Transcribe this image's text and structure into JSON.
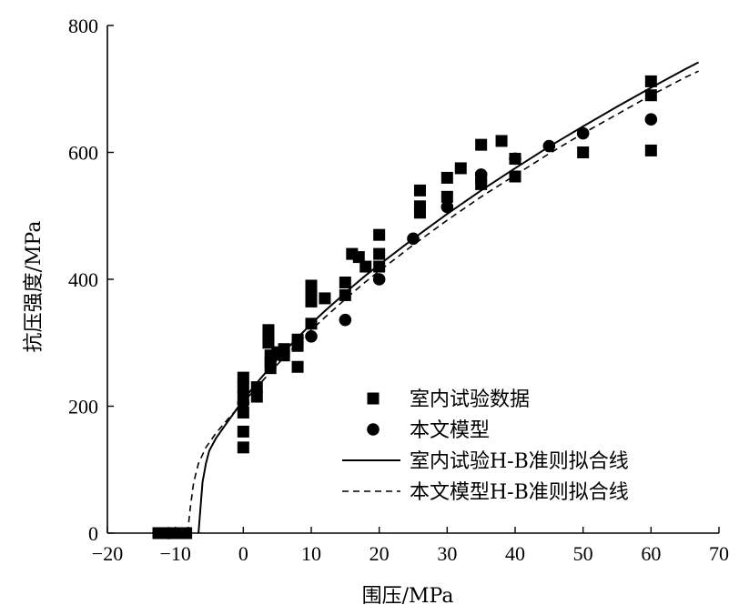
{
  "chart_data": {
    "type": "scatter",
    "xlabel": "围压/MPa",
    "ylabel": "抗压强度/MPa",
    "xlim": [
      -20,
      70
    ],
    "ylim": [
      0,
      800
    ],
    "x_ticks": [
      -20,
      -10,
      0,
      10,
      20,
      30,
      40,
      50,
      60,
      70
    ],
    "y_ticks": [
      0,
      200,
      400,
      600,
      800
    ],
    "x_tick_labels": [
      "−20",
      "−10",
      "0",
      "10",
      "20",
      "30",
      "40",
      "50",
      "60",
      "70"
    ],
    "y_tick_labels": [
      "0",
      "200",
      "400",
      "600",
      "800"
    ],
    "grid": false,
    "legend_position": "lower-right",
    "series": [
      {
        "name": "室内试验数据",
        "kind": "scatter",
        "marker": "square",
        "points": [
          [
            -12.5,
            0
          ],
          [
            -11.7,
            0
          ],
          [
            -10.9,
            0
          ],
          [
            -10,
            0
          ],
          [
            -9.2,
            0
          ],
          [
            -8.4,
            0
          ],
          [
            0,
            135
          ],
          [
            0,
            160
          ],
          [
            0,
            190
          ],
          [
            0,
            215
          ],
          [
            0,
            230
          ],
          [
            0,
            245
          ],
          [
            2,
            215
          ],
          [
            2,
            230
          ],
          [
            3.7,
            300
          ],
          [
            3.7,
            310
          ],
          [
            3.7,
            320
          ],
          [
            4,
            260
          ],
          [
            4,
            270
          ],
          [
            4,
            280
          ],
          [
            5,
            285
          ],
          [
            6,
            280
          ],
          [
            6,
            290
          ],
          [
            8,
            262
          ],
          [
            8,
            295
          ],
          [
            8,
            305
          ],
          [
            10,
            330
          ],
          [
            10,
            365
          ],
          [
            10,
            380
          ],
          [
            10,
            390
          ],
          [
            12,
            370
          ],
          [
            15,
            375
          ],
          [
            15,
            395
          ],
          [
            16,
            440
          ],
          [
            17,
            435
          ],
          [
            18,
            420
          ],
          [
            20,
            420
          ],
          [
            20,
            440
          ],
          [
            20,
            470
          ],
          [
            26,
            505
          ],
          [
            26,
            515
          ],
          [
            26,
            540
          ],
          [
            30,
            530
          ],
          [
            30,
            560
          ],
          [
            32,
            575
          ],
          [
            35,
            550
          ],
          [
            35,
            560
          ],
          [
            35,
            612
          ],
          [
            38,
            618
          ],
          [
            40,
            562
          ],
          [
            40,
            590
          ],
          [
            50,
            600
          ],
          [
            60,
            603
          ],
          [
            60,
            690
          ],
          [
            60,
            712
          ]
        ]
      },
      {
        "name": "本文模型",
        "kind": "scatter",
        "marker": "circle",
        "points": [
          [
            -11,
            0
          ],
          [
            0,
            205
          ],
          [
            5,
            282
          ],
          [
            10,
            310
          ],
          [
            15,
            336
          ],
          [
            20,
            400
          ],
          [
            25,
            464
          ],
          [
            30,
            514
          ],
          [
            35,
            565
          ],
          [
            40,
            590
          ],
          [
            45,
            610
          ],
          [
            50,
            630
          ],
          [
            60,
            652
          ]
        ]
      },
      {
        "name": "室内试验H-B准则拟合线",
        "kind": "line",
        "style": "solid",
        "points": [
          [
            -6.6,
            0
          ],
          [
            -6.3,
            40
          ],
          [
            -6,
            80
          ],
          [
            -5.5,
            110
          ],
          [
            -5,
            130
          ],
          [
            -4,
            150
          ],
          [
            -3,
            165
          ],
          [
            -2,
            180
          ],
          [
            -1,
            195
          ],
          [
            0,
            210
          ],
          [
            2,
            237
          ],
          [
            4,
            262
          ],
          [
            6,
            286
          ],
          [
            8,
            308
          ],
          [
            10,
            330
          ],
          [
            12,
            350
          ],
          [
            14,
            369
          ],
          [
            16,
            388
          ],
          [
            18,
            406
          ],
          [
            20,
            423
          ],
          [
            25,
            464
          ],
          [
            30,
            503
          ],
          [
            35,
            540
          ],
          [
            40,
            575
          ],
          [
            45,
            609
          ],
          [
            50,
            641
          ],
          [
            55,
            672
          ],
          [
            60,
            702
          ],
          [
            65,
            731
          ],
          [
            67,
            742
          ]
        ]
      },
      {
        "name": "本文模型H-B准则拟合线",
        "kind": "line",
        "style": "dashed",
        "points": [
          [
            -8.2,
            0
          ],
          [
            -7.8,
            40
          ],
          [
            -7.3,
            80
          ],
          [
            -6.6,
            110
          ],
          [
            -5.5,
            135
          ],
          [
            -4,
            158
          ],
          [
            -2,
            183
          ],
          [
            0,
            206
          ],
          [
            2,
            230
          ],
          [
            4,
            254
          ],
          [
            6,
            277
          ],
          [
            8,
            299
          ],
          [
            10,
            320
          ],
          [
            12,
            340
          ],
          [
            14,
            359
          ],
          [
            16,
            378
          ],
          [
            18,
            396
          ],
          [
            20,
            413
          ],
          [
            25,
            454
          ],
          [
            30,
            493
          ],
          [
            35,
            530
          ],
          [
            40,
            564
          ],
          [
            45,
            598
          ],
          [
            50,
            630
          ],
          [
            55,
            660
          ],
          [
            60,
            690
          ],
          [
            65,
            718
          ],
          [
            67,
            728
          ]
        ]
      }
    ]
  }
}
